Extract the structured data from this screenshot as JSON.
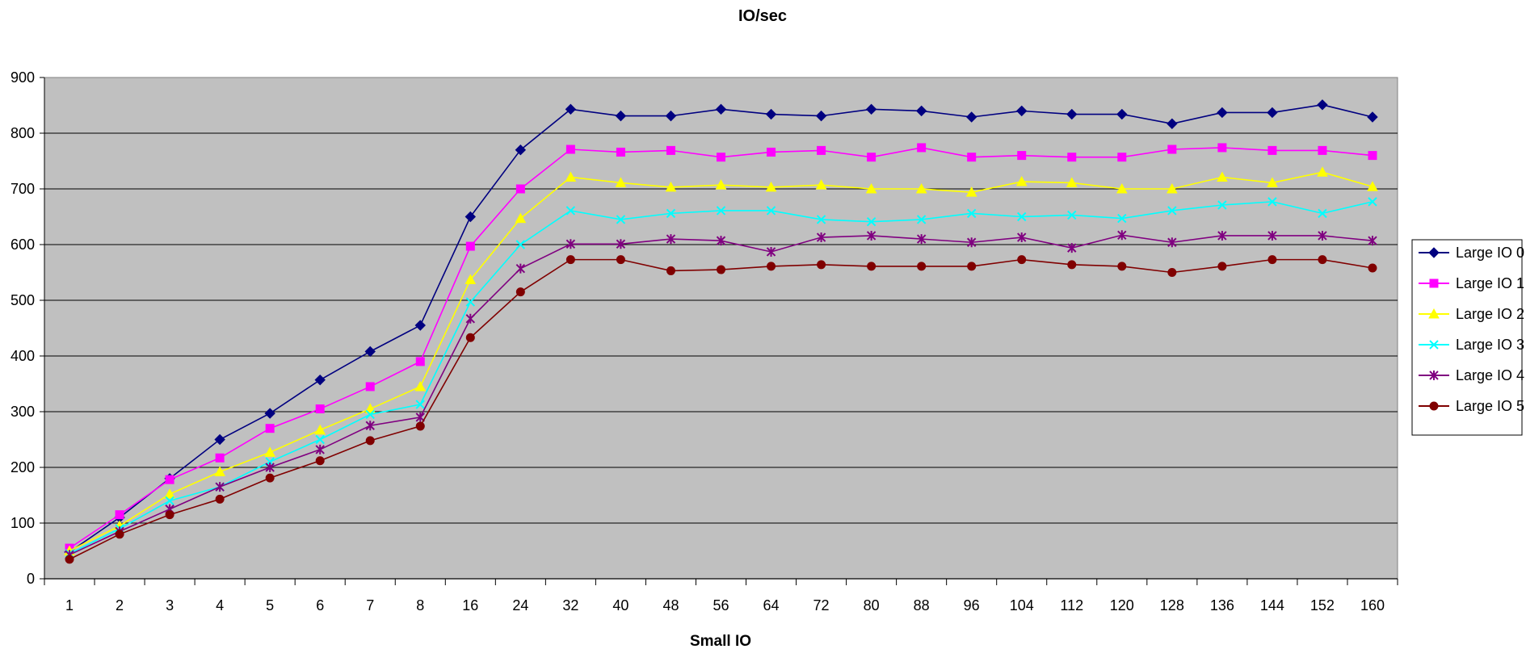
{
  "chart_data": {
    "type": "line",
    "title": "IO/sec",
    "xlabel": "Small IO",
    "ylabel": "",
    "ylim": [
      0,
      900
    ],
    "y_ticks": [
      0,
      100,
      200,
      300,
      400,
      500,
      600,
      700,
      800,
      900
    ],
    "categories": [
      "1",
      "2",
      "3",
      "4",
      "5",
      "6",
      "7",
      "8",
      "16",
      "24",
      "32",
      "40",
      "48",
      "56",
      "64",
      "72",
      "80",
      "88",
      "96",
      "104",
      "112",
      "120",
      "128",
      "136",
      "144",
      "152",
      "160"
    ],
    "grid": true,
    "plot_background": "#C0C0C0",
    "legend_position": "right",
    "series": [
      {
        "name": "Large IO 0",
        "color": "#000080",
        "marker": "diamond",
        "values": [
          48,
          110,
          180,
          250,
          297,
          357,
          408,
          455,
          650,
          770,
          843,
          831,
          831,
          843,
          834,
          831,
          843,
          840,
          829,
          840,
          834,
          834,
          817,
          837,
          837,
          851,
          829
        ]
      },
      {
        "name": "Large IO 1",
        "color": "#FF00FF",
        "marker": "square",
        "values": [
          55,
          115,
          178,
          217,
          270,
          305,
          345,
          390,
          597,
          700,
          771,
          766,
          769,
          757,
          766,
          769,
          757,
          774,
          757,
          760,
          757,
          757,
          771,
          774,
          769,
          769,
          760
        ]
      },
      {
        "name": "Large IO 2",
        "color": "#FFFF00",
        "marker": "triangle",
        "values": [
          50,
          95,
          152,
          192,
          227,
          267,
          305,
          345,
          537,
          647,
          721,
          711,
          703,
          707,
          703,
          707,
          700,
          700,
          694,
          713,
          711,
          700,
          700,
          721,
          711,
          730,
          704
        ]
      },
      {
        "name": "Large IO 3",
        "color": "#00FFFF",
        "marker": "x",
        "values": [
          45,
          90,
          140,
          165,
          210,
          250,
          295,
          313,
          497,
          600,
          661,
          645,
          656,
          661,
          661,
          645,
          641,
          645,
          656,
          650,
          653,
          647,
          661,
          671,
          677,
          656,
          677
        ]
      },
      {
        "name": "Large IO 4",
        "color": "#800080",
        "marker": "star",
        "values": [
          43,
          85,
          125,
          165,
          200,
          232,
          275,
          290,
          467,
          557,
          601,
          601,
          610,
          607,
          587,
          613,
          616,
          610,
          604,
          613,
          594,
          617,
          604,
          616,
          616,
          616,
          607
        ]
      },
      {
        "name": "Large IO 5",
        "color": "#800000",
        "marker": "circle",
        "values": [
          35,
          80,
          115,
          143,
          181,
          212,
          248,
          274,
          433,
          515,
          573,
          573,
          553,
          555,
          561,
          564,
          561,
          561,
          561,
          573,
          564,
          561,
          550,
          561,
          573,
          573,
          558
        ]
      }
    ]
  }
}
